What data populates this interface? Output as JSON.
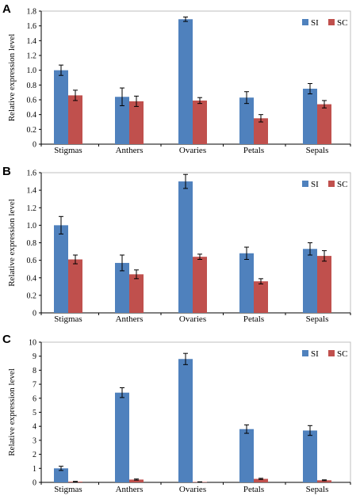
{
  "chart_data": [
    {
      "panel": "A",
      "type": "bar",
      "categories": [
        "Stigmas",
        "Anthers",
        "Ovaries",
        "Petals",
        "Sepals"
      ],
      "ylabel": "Relative expression level",
      "ylim": [
        0,
        1.8
      ],
      "yticks": [
        "0",
        "0.2",
        "0.4",
        "0.6",
        "0.8",
        "1.0",
        "1.2",
        "1.4",
        "1.6",
        "1.8"
      ],
      "legend_position": "top-right",
      "series": [
        {
          "name": "SI",
          "color": "#4f81bd",
          "values": [
            1.0,
            0.64,
            1.69,
            0.63,
            0.75
          ],
          "errors": [
            0.07,
            0.12,
            0.03,
            0.08,
            0.07
          ]
        },
        {
          "name": "SC",
          "color": "#c0504d",
          "values": [
            0.66,
            0.58,
            0.59,
            0.35,
            0.54
          ],
          "errors": [
            0.07,
            0.07,
            0.04,
            0.05,
            0.05
          ]
        }
      ]
    },
    {
      "panel": "B",
      "type": "bar",
      "categories": [
        "Stigmas",
        "Anthers",
        "Ovaries",
        "Petals",
        "Sepals"
      ],
      "ylabel": "Relative expression level",
      "ylim": [
        0,
        1.6
      ],
      "yticks": [
        "0",
        "0.2",
        "0.4",
        "0.6",
        "0.8",
        "1.0",
        "1.2",
        "1.4",
        "1.6"
      ],
      "legend_position": "top-right",
      "series": [
        {
          "name": "SI",
          "color": "#4f81bd",
          "values": [
            1.0,
            0.57,
            1.5,
            0.68,
            0.73
          ],
          "errors": [
            0.1,
            0.09,
            0.08,
            0.07,
            0.07
          ]
        },
        {
          "name": "SC",
          "color": "#c0504d",
          "values": [
            0.61,
            0.44,
            0.64,
            0.36,
            0.65
          ],
          "errors": [
            0.05,
            0.05,
            0.03,
            0.03,
            0.06
          ]
        }
      ]
    },
    {
      "panel": "C",
      "type": "bar",
      "categories": [
        "Stigmas",
        "Anthers",
        "Ovaries",
        "Petals",
        "Sepals"
      ],
      "ylabel": "Relative expression level",
      "ylim": [
        0,
        10
      ],
      "yticks": [
        "0",
        "1",
        "2",
        "3",
        "4",
        "5",
        "6",
        "7",
        "8",
        "9",
        "10"
      ],
      "legend_position": "top-right",
      "series": [
        {
          "name": "SI",
          "color": "#4f81bd",
          "values": [
            1.0,
            6.4,
            8.8,
            3.8,
            3.7
          ],
          "errors": [
            0.15,
            0.35,
            0.4,
            0.3,
            0.35
          ]
        },
        {
          "name": "SC",
          "color": "#c0504d",
          "values": [
            0.05,
            0.2,
            0.03,
            0.25,
            0.15
          ],
          "errors": [
            0.02,
            0.04,
            0.01,
            0.04,
            0.03
          ]
        }
      ]
    }
  ]
}
